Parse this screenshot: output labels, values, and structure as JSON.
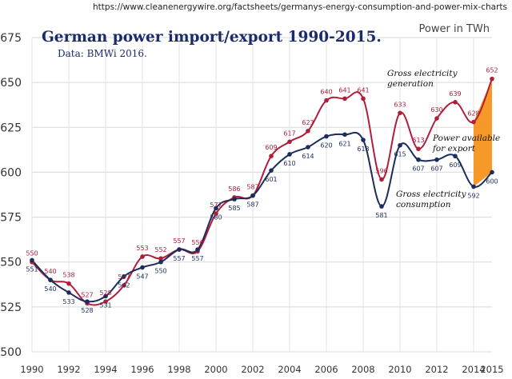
{
  "source_url": "https://www.cleanenergywire.org/factsheets/germanys-energy-consumption-and-power-mix-charts",
  "chart_data": {
    "type": "line",
    "title": "German power import/export 1990-2015.",
    "subtitle": "Data: BMWi 2016.",
    "unit_label": "Power in TWh",
    "ylim": [
      500,
      675
    ],
    "yticks": [
      500,
      525,
      550,
      575,
      600,
      625,
      650,
      675
    ],
    "xticks": [
      1990,
      1992,
      1994,
      1996,
      1998,
      2000,
      2002,
      2004,
      2006,
      2008,
      2010,
      2012,
      2014,
      2015
    ],
    "grid": true,
    "x": [
      1990,
      1991,
      1992,
      1993,
      1994,
      1995,
      1996,
      1997,
      1998,
      1999,
      2000,
      2001,
      2002,
      2003,
      2004,
      2005,
      2006,
      2007,
      2008,
      2009,
      2010,
      2011,
      2012,
      2013,
      2014,
      2015
    ],
    "series": [
      {
        "name": "Gross electricity generation",
        "color": "#b01e3a",
        "values": [
          550,
          540,
          538,
          527,
          528,
          537,
          553,
          552,
          557,
          556,
          577,
          586,
          587,
          609,
          617,
          623,
          640,
          641,
          641,
          596,
          633,
          613,
          630,
          639,
          628,
          652
        ]
      },
      {
        "name": "Gross electricity consumption",
        "color": "#1b2d5c",
        "values": [
          551,
          540,
          533,
          528,
          531,
          542,
          547,
          550,
          557,
          557,
          580,
          585,
          587,
          601,
          610,
          614,
          620,
          621,
          618,
          581,
          615,
          607,
          607,
          609,
          592,
          600
        ]
      }
    ],
    "annotations": {
      "generation": [
        "Gross electricity",
        "generation"
      ],
      "consumption": [
        "Gross electricity",
        "consumption"
      ],
      "export": [
        "Power available",
        "for export"
      ]
    },
    "export_fill_color": "#f7941d"
  }
}
